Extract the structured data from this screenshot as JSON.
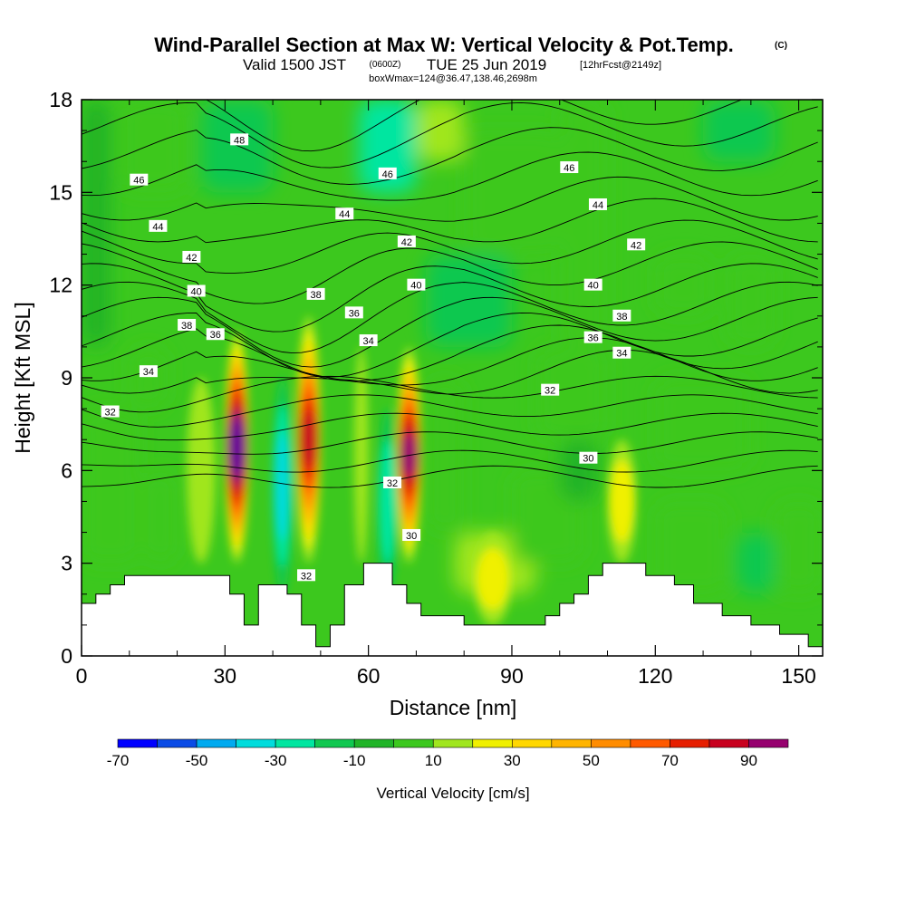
{
  "header": {
    "title": "Wind-Parallel Section at Max W: Vertical Velocity & Pot.Temp.",
    "copyright": "(C)",
    "valid_prefix": "Valid 1500 JST",
    "valid_utc": "(0600Z)",
    "valid_date": "TUE 25 Jun 2019",
    "forecast_info": "[12hrFcst@2149z]",
    "box_info": "boxWmax=124@36.47,138.46,2698m"
  },
  "chart_data": {
    "type": "heatmap",
    "xlabel": "Distance [nm]",
    "ylabel": "Height [Kft MSL]",
    "xlim": [
      0,
      155
    ],
    "ylim": [
      0,
      18
    ],
    "x_ticks": [
      0,
      30,
      60,
      90,
      120,
      150
    ],
    "x_tick_labels": [
      "0",
      "30",
      "60",
      "90",
      "120",
      "150"
    ],
    "y_ticks": [
      0,
      3,
      6,
      9,
      12,
      15,
      18
    ],
    "y_tick_labels": [
      "0",
      "3",
      "6",
      "9",
      "12",
      "15",
      "18"
    ],
    "grid": false,
    "colorbar": {
      "title": "Vertical Velocity [cm/s]",
      "position": "bottom",
      "boundaries": [
        -70,
        -60,
        -50,
        -40,
        -30,
        -20,
        -10,
        0,
        10,
        20,
        30,
        40,
        50,
        60,
        70,
        80,
        90,
        100
      ],
      "tick_values": [
        -70,
        -50,
        -30,
        -10,
        10,
        30,
        50,
        70,
        90
      ],
      "tick_labels": [
        "-70",
        "-50",
        "-30",
        "-10",
        "10",
        "30",
        "50",
        "70",
        "90"
      ],
      "colors": [
        "#0000ff",
        "#0a4be6",
        "#00aaf0",
        "#00dcdc",
        "#00e6a0",
        "#10c850",
        "#20b428",
        "#3cc81e",
        "#a0e61e",
        "#f0f000",
        "#ffd700",
        "#ffb400",
        "#ff8c00",
        "#ff5a00",
        "#e61e00",
        "#c8001e",
        "#96006e",
        "#640096"
      ]
    },
    "vertical_velocity_cells": [
      {
        "x": [
          30,
          35
        ],
        "y": [
          3,
          10.5
        ],
        "w": 124,
        "note": "updraft core"
      },
      {
        "x": [
          45,
          50
        ],
        "y": [
          3,
          11
        ],
        "w": 85
      },
      {
        "x": [
          66,
          71
        ],
        "y": [
          3,
          10
        ],
        "w": 98
      },
      {
        "x": [
          40,
          44
        ],
        "y": [
          2,
          9
        ],
        "w": -35
      },
      {
        "x": [
          62,
          66
        ],
        "y": [
          2,
          8
        ],
        "w": -25
      },
      {
        "x": [
          57,
          60
        ],
        "y": [
          3,
          10
        ],
        "w": 15
      },
      {
        "x": [
          22,
          28
        ],
        "y": [
          3,
          9
        ],
        "w": 15
      },
      {
        "x": [
          110,
          116
        ],
        "y": [
          3,
          7
        ],
        "w": 30
      },
      {
        "x": [
          82,
          90
        ],
        "y": [
          1,
          4
        ],
        "w": 25
      }
    ],
    "potential_temperature_contours": {
      "levels": [
        30,
        32,
        34,
        36,
        38,
        40,
        42,
        44,
        46,
        48
      ],
      "labels": [
        "30",
        "32",
        "34",
        "36",
        "38",
        "40",
        "42",
        "44",
        "46",
        "48"
      ]
    },
    "terrain_height_kft": [
      [
        0,
        1.7
      ],
      [
        3,
        1.7
      ],
      [
        3,
        2.0
      ],
      [
        6,
        2.0
      ],
      [
        6,
        2.3
      ],
      [
        9,
        2.3
      ],
      [
        9,
        2.6
      ],
      [
        31,
        2.6
      ],
      [
        31,
        2.0
      ],
      [
        34,
        2.0
      ],
      [
        34,
        1.0
      ],
      [
        37,
        1.0
      ],
      [
        37,
        2.3
      ],
      [
        43,
        2.3
      ],
      [
        43,
        2.0
      ],
      [
        46,
        2.0
      ],
      [
        46,
        1.0
      ],
      [
        49,
        1.0
      ],
      [
        49,
        0.3
      ],
      [
        52,
        0.3
      ],
      [
        52,
        1.0
      ],
      [
        55,
        1.0
      ],
      [
        55,
        2.3
      ],
      [
        59,
        2.3
      ],
      [
        59,
        3.0
      ],
      [
        65,
        3.0
      ],
      [
        65,
        2.3
      ],
      [
        68,
        2.3
      ],
      [
        68,
        1.7
      ],
      [
        71,
        1.7
      ],
      [
        71,
        1.3
      ],
      [
        80,
        1.3
      ],
      [
        80,
        1.0
      ],
      [
        97,
        1.0
      ],
      [
        97,
        1.3
      ],
      [
        100,
        1.3
      ],
      [
        100,
        1.7
      ],
      [
        103,
        1.7
      ],
      [
        103,
        2.0
      ],
      [
        106,
        2.0
      ],
      [
        106,
        2.6
      ],
      [
        109,
        2.6
      ],
      [
        109,
        3.0
      ],
      [
        118,
        3.0
      ],
      [
        118,
        2.6
      ],
      [
        124,
        2.6
      ],
      [
        124,
        2.3
      ],
      [
        128,
        2.3
      ],
      [
        128,
        1.7
      ],
      [
        134,
        1.7
      ],
      [
        134,
        1.3
      ],
      [
        140,
        1.3
      ],
      [
        140,
        1.0
      ],
      [
        146,
        1.0
      ],
      [
        146,
        0.7
      ],
      [
        152,
        0.7
      ],
      [
        152,
        0.3
      ],
      [
        155,
        0.3
      ]
    ]
  },
  "contour_label_positions": [
    {
      "text": "48",
      "x": 33,
      "y": 16.7
    },
    {
      "text": "46",
      "x": 12,
      "y": 15.4
    },
    {
      "text": "46",
      "x": 64,
      "y": 15.6
    },
    {
      "text": "46",
      "x": 102,
      "y": 15.8
    },
    {
      "text": "44",
      "x": 16,
      "y": 13.9
    },
    {
      "text": "44",
      "x": 55,
      "y": 14.3
    },
    {
      "text": "44",
      "x": 108,
      "y": 14.6
    },
    {
      "text": "42",
      "x": 23,
      "y": 12.9
    },
    {
      "text": "42",
      "x": 68,
      "y": 13.4
    },
    {
      "text": "42",
      "x": 116,
      "y": 13.3
    },
    {
      "text": "40",
      "x": 24,
      "y": 11.8
    },
    {
      "text": "40",
      "x": 70,
      "y": 12.0
    },
    {
      "text": "40",
      "x": 107,
      "y": 12.0
    },
    {
      "text": "38",
      "x": 22,
      "y": 10.7
    },
    {
      "text": "38",
      "x": 49,
      "y": 11.7
    },
    {
      "text": "38",
      "x": 113,
      "y": 11.0
    },
    {
      "text": "36",
      "x": 28,
      "y": 10.4
    },
    {
      "text": "36",
      "x": 57,
      "y": 11.1
    },
    {
      "text": "36",
      "x": 107,
      "y": 10.3
    },
    {
      "text": "34",
      "x": 14,
      "y": 9.2
    },
    {
      "text": "34",
      "x": 60,
      "y": 10.2
    },
    {
      "text": "34",
      "x": 113,
      "y": 9.8
    },
    {
      "text": "32",
      "x": 6,
      "y": 7.9
    },
    {
      "text": "32",
      "x": 98,
      "y": 8.6
    },
    {
      "text": "32",
      "x": 65,
      "y": 5.6
    },
    {
      "text": "32",
      "x": 47,
      "y": 2.6
    },
    {
      "text": "30",
      "x": 69,
      "y": 3.9
    },
    {
      "text": "30",
      "x": 106,
      "y": 6.4
    }
  ]
}
